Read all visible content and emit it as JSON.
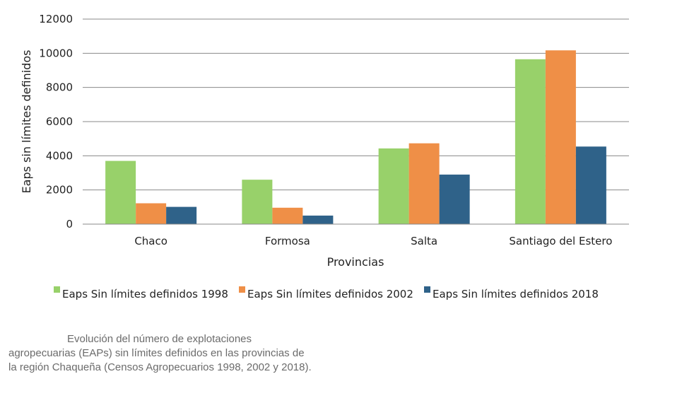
{
  "chart_data": {
    "type": "bar",
    "categories": [
      "Chaco",
      "Formosa",
      "Salta",
      "Santiago del Estero"
    ],
    "series": [
      {
        "name": "Eaps Sin límites definidos 1998",
        "color": "#98d16a",
        "values": [
          3700,
          2600,
          4430,
          9650
        ]
      },
      {
        "name": "Eaps Sin límites definidos 2002",
        "color": "#ef8f47",
        "values": [
          1220,
          960,
          4730,
          10170
        ]
      },
      {
        "name": "Eaps Sin límites definidos 2018",
        "color": "#2f6289",
        "values": [
          1010,
          500,
          2900,
          4540
        ]
      }
    ],
    "xlabel": "Provincias",
    "ylabel": "Eaps sin límites definidos",
    "ylim": [
      0,
      12000
    ],
    "yticks": [
      0,
      2000,
      4000,
      6000,
      8000,
      10000,
      12000
    ],
    "grid": "horizontal",
    "legend_position": "bottom"
  },
  "caption": {
    "lines": [
      "Evolución del número de explotaciones",
      "agropecuarias (EAPs) sin límites definidos en las provincias de",
      "la región Chaqueña (Censos Agropecuarios 1998, 2002 y 2018)."
    ]
  }
}
